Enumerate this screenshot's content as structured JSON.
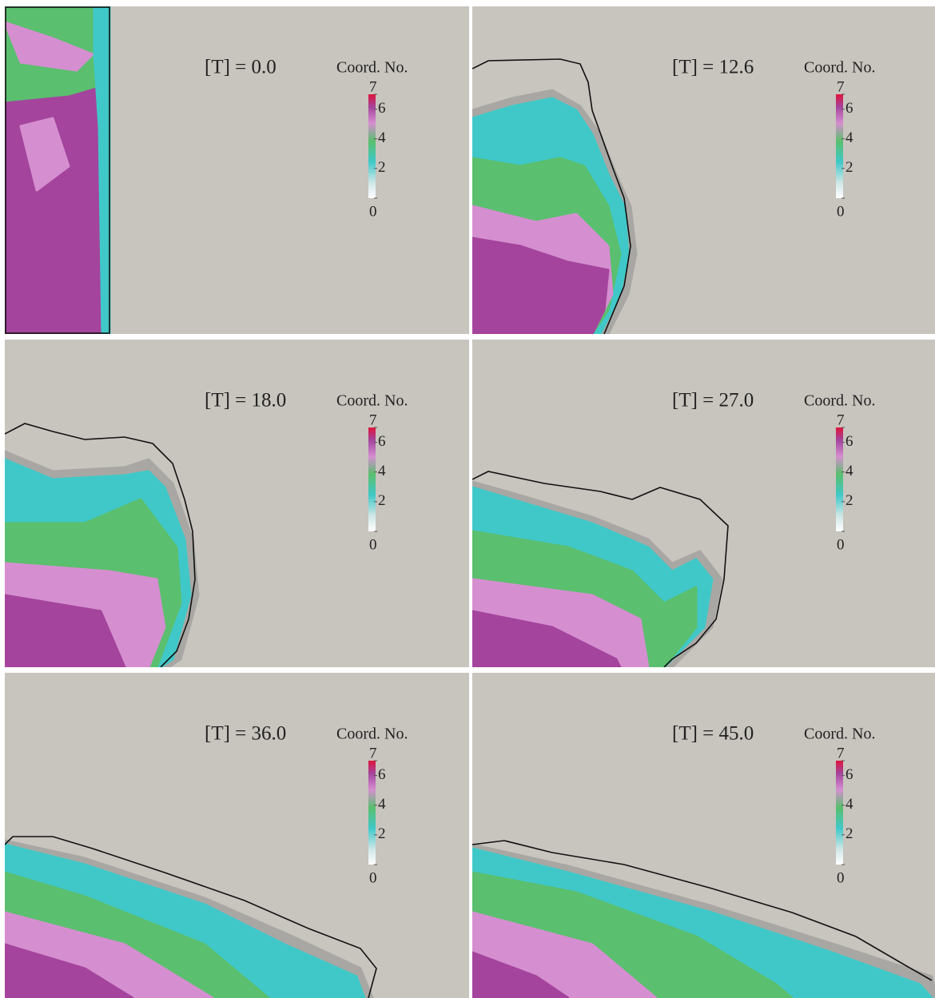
{
  "panels": [
    {
      "label": "[T] = 0.0"
    },
    {
      "label": "[T] = 12.6"
    },
    {
      "label": "[T] = 18.0"
    },
    {
      "label": "[T] = 27.0"
    },
    {
      "label": "[T] = 36.0"
    },
    {
      "label": "[T] = 45.0"
    }
  ],
  "colorbar": {
    "title": "Coord. No.",
    "ticks": [
      0,
      2,
      4,
      6,
      7
    ]
  }
}
